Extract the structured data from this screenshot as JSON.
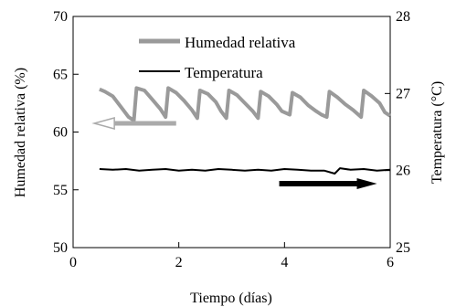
{
  "chart_data": {
    "type": "line",
    "xlabel": "Tiempo (días)",
    "ylabel_left": "Humedad relativa (%)",
    "ylabel_right": "Temperatura (°C)",
    "xlim": [
      0,
      6
    ],
    "ylim_left": [
      50,
      70
    ],
    "ylim_right": [
      25,
      28
    ],
    "x_ticks": [
      0,
      2,
      4,
      6
    ],
    "y_ticks_left": [
      50,
      55,
      60,
      65,
      70
    ],
    "y_ticks_right": [
      25,
      26,
      27,
      28
    ],
    "grid": false,
    "legend": {
      "placement": "top-center",
      "entries": [
        {
          "label": "Humedad relativa",
          "color": "#9a9a9a"
        },
        {
          "label": "Temperatura",
          "color": "#000000"
        }
      ]
    },
    "series": [
      {
        "name": "Humedad relativa",
        "axis": "left",
        "color": "#9a9a9a",
        "x": [
          0.5,
          0.6,
          0.75,
          0.9,
          1.05,
          1.15,
          1.2,
          1.35,
          1.5,
          1.65,
          1.75,
          1.8,
          1.95,
          2.1,
          2.25,
          2.35,
          2.4,
          2.55,
          2.7,
          2.8,
          2.9,
          2.95,
          3.1,
          3.25,
          3.4,
          3.5,
          3.55,
          3.7,
          3.85,
          3.95,
          4.1,
          4.15,
          4.3,
          4.45,
          4.6,
          4.7,
          4.8,
          4.85,
          5.0,
          5.15,
          5.3,
          5.45,
          5.5,
          5.65,
          5.8,
          5.9,
          6.0
        ],
        "y": [
          63.7,
          63.5,
          63.1,
          62.2,
          61.3,
          61.0,
          63.8,
          63.6,
          62.8,
          62.0,
          61.3,
          63.8,
          63.4,
          62.7,
          61.9,
          61.2,
          63.6,
          63.3,
          62.6,
          61.8,
          61.2,
          63.6,
          63.2,
          62.5,
          61.8,
          61.2,
          63.5,
          63.1,
          62.4,
          61.8,
          61.5,
          63.4,
          63.0,
          62.3,
          61.8,
          61.5,
          61.3,
          63.5,
          63.0,
          62.4,
          61.9,
          61.3,
          63.6,
          63.1,
          62.5,
          61.7,
          61.4
        ]
      },
      {
        "name": "Temperatura",
        "axis": "right",
        "color": "#000000",
        "x": [
          0.5,
          0.75,
          1.0,
          1.25,
          1.5,
          1.75,
          2.0,
          2.25,
          2.5,
          2.75,
          3.0,
          3.25,
          3.5,
          3.75,
          4.0,
          4.25,
          4.5,
          4.75,
          4.95,
          5.05,
          5.25,
          5.5,
          5.75,
          6.0
        ],
        "y": [
          26.02,
          26.01,
          26.02,
          26.0,
          26.01,
          26.02,
          26.0,
          26.01,
          26.0,
          26.02,
          26.01,
          26.0,
          26.01,
          26.0,
          26.02,
          26.01,
          26.0,
          26.0,
          25.96,
          26.03,
          26.01,
          26.02,
          26.0,
          26.01
        ]
      }
    ],
    "annotations": [
      {
        "name": "left-arrow",
        "points_to": "left-axis",
        "color": "#aaaaaa",
        "x_from": 1.95,
        "x_to": 0.4,
        "y": 60.75,
        "axis": "left"
      },
      {
        "name": "right-arrow",
        "points_to": "right-axis",
        "color": "#000000",
        "x_from": 3.9,
        "x_to": 5.75,
        "y": 25.83,
        "axis": "right"
      }
    ]
  }
}
